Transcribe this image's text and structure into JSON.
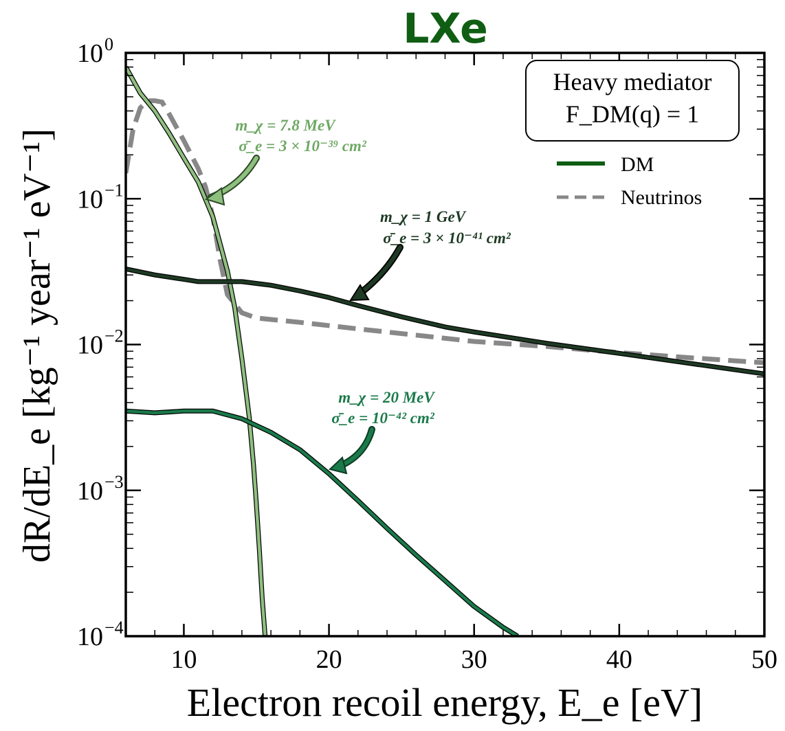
{
  "chart_data": {
    "type": "line",
    "title": "LXe",
    "xlabel": "Electron recoil energy, E_e [eV]",
    "ylabel": "dR/dE_e [kg⁻¹ year⁻¹ eV⁻¹]",
    "xlim": [
      6,
      50
    ],
    "ylim": [
      0.0001,
      1
    ],
    "yscale": "log",
    "x_ticks": [
      10,
      20,
      30,
      40,
      50
    ],
    "y_tick_exponents": [
      -4,
      -3,
      -2,
      -1,
      0
    ],
    "y_tick_base": "10",
    "box": {
      "line1": "Heavy mediator",
      "line2": "F_DM(q) = 1"
    },
    "legend": {
      "position": "top-right",
      "entries": [
        {
          "label": "DM",
          "color": "#0f5e14",
          "style": "solid"
        },
        {
          "label": "Neutrinos",
          "color": "#888888",
          "style": "dashed"
        }
      ]
    },
    "series": [
      {
        "label_line1": "m_χ = 7.8 MeV",
        "label_line2": "σ̄_e = 3 × 10⁻³⁹ cm²",
        "color": "#8fbf7f",
        "x": [
          6,
          7,
          8,
          9,
          10,
          11,
          12,
          13,
          13.5,
          14,
          14.5,
          14.8,
          15,
          15.2,
          15.4,
          15.6
        ],
        "y": [
          0.8,
          0.53,
          0.4,
          0.28,
          0.19,
          0.13,
          0.075,
          0.032,
          0.018,
          0.008,
          0.0032,
          0.0015,
          0.0008,
          0.0004,
          0.00018,
          0.0001
        ]
      },
      {
        "label_line1": "m_χ = 1 GeV",
        "label_line2": "σ̄_e = 3 × 10⁻⁴¹ cm²",
        "color": "#1e3a24",
        "x": [
          6,
          8,
          10,
          11,
          12,
          14,
          16,
          18,
          20,
          22,
          25,
          28,
          30,
          35,
          40,
          45,
          50
        ],
        "y": [
          0.033,
          0.03,
          0.028,
          0.027,
          0.027,
          0.027,
          0.0255,
          0.0233,
          0.021,
          0.0185,
          0.0155,
          0.0132,
          0.0122,
          0.0102,
          0.0087,
          0.0074,
          0.0063
        ]
      },
      {
        "label_line1": "m_χ = 20 MeV",
        "label_line2": "σ̄_e = 10⁻⁴² cm²",
        "color": "#1a7a4a",
        "x": [
          6,
          8,
          10,
          12,
          14,
          16,
          18,
          20,
          22,
          24,
          26,
          28,
          30,
          32,
          33
        ],
        "y": [
          0.0035,
          0.0034,
          0.0035,
          0.0035,
          0.0031,
          0.0025,
          0.0019,
          0.0013,
          0.00085,
          0.00055,
          0.00036,
          0.00024,
          0.00016,
          0.000115,
          0.0001
        ]
      },
      {
        "name": "Neutrinos",
        "color": "#888888",
        "dashed": true,
        "x": [
          6,
          6.5,
          7,
          7.5,
          8,
          8.5,
          9,
          10,
          11,
          11.5,
          12,
          12.5,
          13,
          14,
          15,
          18,
          22,
          26,
          30,
          35,
          40,
          45,
          50
        ],
        "y": [
          0.15,
          0.3,
          0.42,
          0.47,
          0.47,
          0.46,
          0.38,
          0.25,
          0.16,
          0.12,
          0.075,
          0.038,
          0.022,
          0.0165,
          0.0152,
          0.0142,
          0.0128,
          0.0116,
          0.0105,
          0.0097,
          0.0088,
          0.0081,
          0.0075
        ]
      }
    ]
  }
}
